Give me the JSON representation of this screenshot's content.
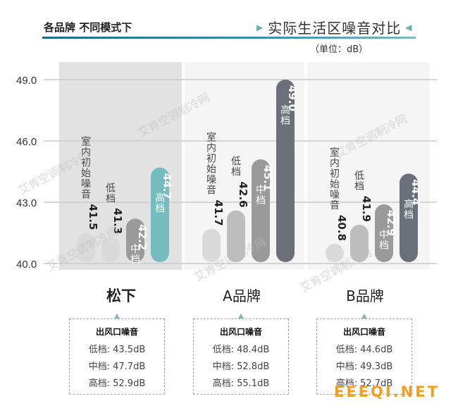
{
  "header": {
    "left_title": "各品牌 不同模式下",
    "right_title": "实际生活区噪音对比",
    "unit": "（单位：dB）"
  },
  "colors": {
    "accent": "#1d6a86",
    "teal": "#74bcc0",
    "bar_light": "#dadada",
    "bar_mid": "#bdbdbd",
    "bar_dark": "#9a9a9a",
    "bar_darkest": "#6b7078",
    "highlight_bg": "#e2e2e2"
  },
  "chart_data": {
    "type": "bar",
    "ylim": [
      40.0,
      49.0
    ],
    "yticks": [
      "40.0",
      "43.0",
      "46.0",
      "49.0"
    ],
    "grid": true,
    "groups": [
      {
        "name": "松下",
        "highlighted": true,
        "bars": [
          {
            "label": "室内初始噪音",
            "value": 41.5,
            "value_text": "41.5",
            "shade": "light"
          },
          {
            "label": "低档",
            "value": 41.3,
            "value_text": "41.3",
            "shade": "light"
          },
          {
            "label": "中档",
            "value": 42.2,
            "value_text": "42.2",
            "shade": "dark"
          },
          {
            "label": "高档",
            "value": 44.7,
            "value_text": "44.7",
            "shade": "teal"
          }
        ],
        "outlet_noise": {
          "title": "出风口噪音",
          "rows": [
            {
              "label": "低档:",
              "value": "43.5dB"
            },
            {
              "label": "中档:",
              "value": "47.7dB"
            },
            {
              "label": "高档:",
              "value": "52.9dB"
            }
          ]
        }
      },
      {
        "name": "A品牌",
        "highlighted": false,
        "bars": [
          {
            "label": "室内初始噪音",
            "value": 41.7,
            "value_text": "41.7",
            "shade": "light"
          },
          {
            "label": "低档",
            "value": 42.6,
            "value_text": "42.6",
            "shade": "mid"
          },
          {
            "label": "中档",
            "value": 45.1,
            "value_text": "45.1",
            "shade": "dark"
          },
          {
            "label": "高档",
            "value": 49.0,
            "value_text": "49.0",
            "shade": "darkest"
          }
        ],
        "outlet_noise": {
          "title": "出风口噪音",
          "rows": [
            {
              "label": "低档:",
              "value": "48.4dB"
            },
            {
              "label": "中档:",
              "value": "52.8dB"
            },
            {
              "label": "高档:",
              "value": "55.1dB"
            }
          ]
        }
      },
      {
        "name": "B品牌",
        "highlighted": false,
        "bars": [
          {
            "label": "室内初始噪音",
            "value": 40.8,
            "value_text": "40.8",
            "shade": "light"
          },
          {
            "label": "低档",
            "value": 41.9,
            "value_text": "41.9",
            "shade": "mid"
          },
          {
            "label": "中档",
            "value": 42.9,
            "value_text": "42.9",
            "shade": "dark"
          },
          {
            "label": "高档",
            "value": 44.4,
            "value_text": "44.4",
            "shade": "darkest"
          }
        ],
        "outlet_noise": {
          "title": "出风口噪音",
          "rows": [
            {
              "label": "低档:",
              "value": "44.6dB"
            },
            {
              "label": "中档:",
              "value": "49.3dB"
            },
            {
              "label": "高档:",
              "value": "52.7dB"
            }
          ]
        }
      }
    ]
  },
  "watermarks": [
    "艾肯空调制冷网",
    "艾肯空调制冷网",
    "艾肯空调制冷网",
    "艾肯空调制冷网",
    "艾肯空调制冷网",
    "艾肯空调制冷网"
  ],
  "footer_logo": "EEEQI.NET"
}
